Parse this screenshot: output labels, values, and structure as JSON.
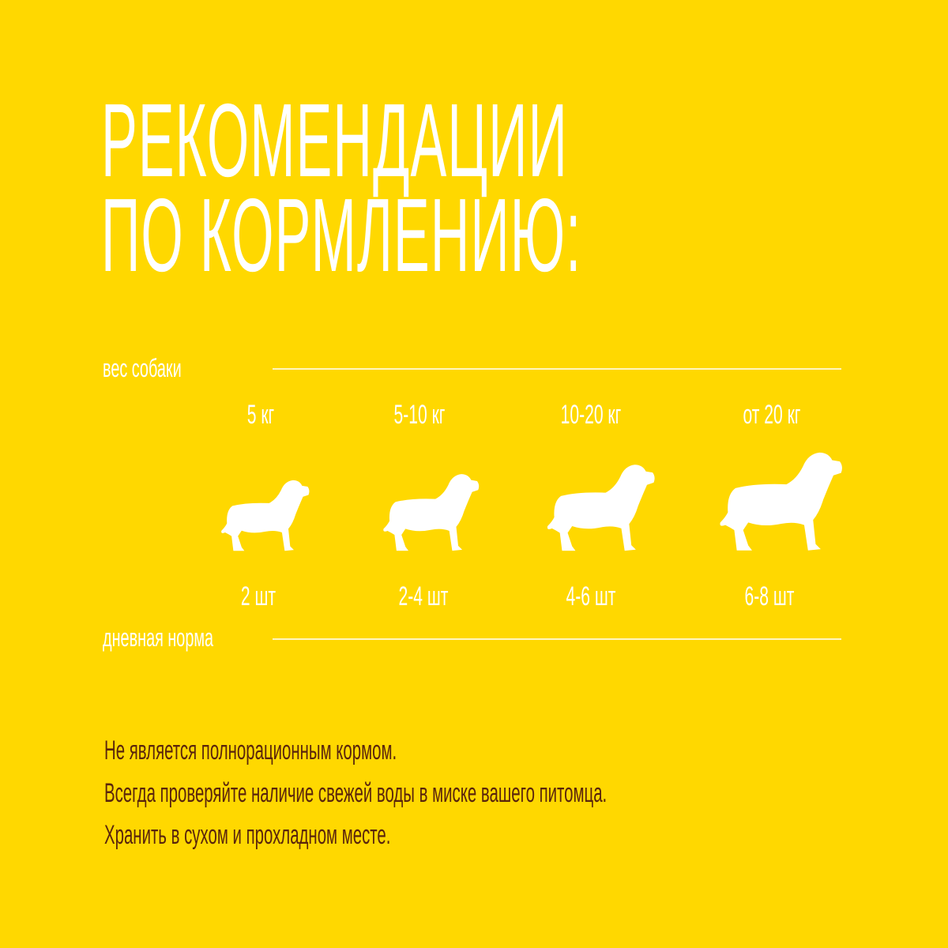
{
  "title": {
    "line1": "РЕКОМЕНДАЦИИ",
    "line2": "ПО КОРМЛЕНИЮ:"
  },
  "weight_label": "вес собаки",
  "norm_label": "дневная норма",
  "columns": [
    {
      "weight": "5 кг",
      "amount": "2 шт",
      "icon": "dog-silhouette-icon"
    },
    {
      "weight": "5-10 кг",
      "amount": "2-4 шт",
      "icon": "dog-silhouette-icon"
    },
    {
      "weight": "10-20 кг",
      "amount": "4-6 шт",
      "icon": "dog-silhouette-icon"
    },
    {
      "weight": "от 20 кг",
      "amount": "6-8 шт",
      "icon": "dog-silhouette-icon"
    }
  ],
  "notes": [
    "Не является полнорационным кормом.",
    "Всегда проверяйте наличие свежей воды в миске вашего питомца.",
    "Хранить в сухом и прохладном месте."
  ],
  "colors": {
    "background": "#FFD800",
    "title": "#FFFFFF",
    "notes": "#5A250C"
  }
}
